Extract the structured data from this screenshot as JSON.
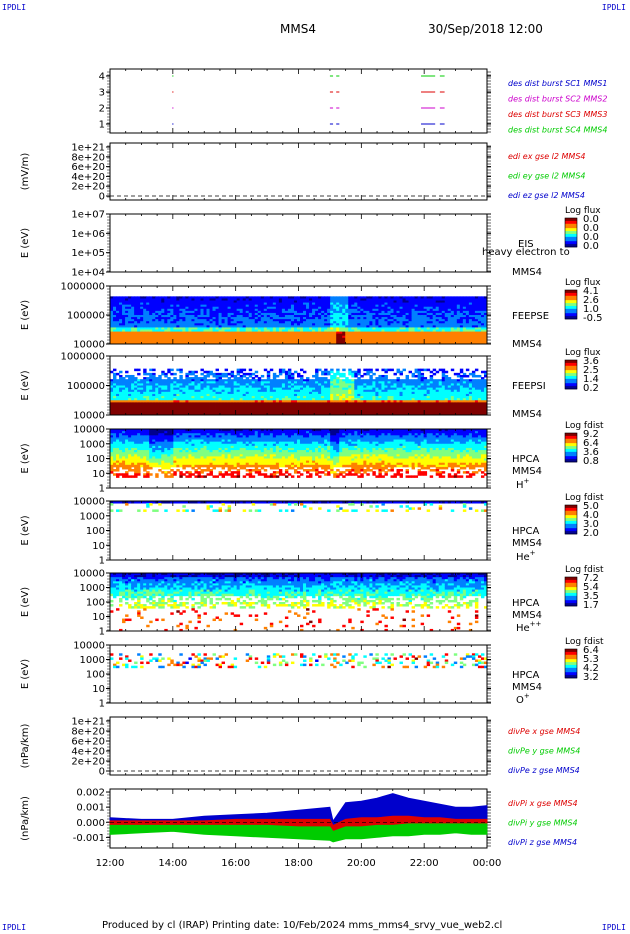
{
  "corner_labels": {
    "top_left": "IPDLI",
    "top_right": "IPDLI",
    "bottom_left": "IPDLI",
    "bottom_right": "IPDLI"
  },
  "header": {
    "spacecraft": "MMS4",
    "datetime": "30/Sep/2018 12:00"
  },
  "footer": "Produced by cl (IRAP)   Printing date: 10/Feb/2024   mms_mms4_srvy_vue_web2.cl",
  "colors": {
    "blue": "#0000cc",
    "magenta": "#cc00cc",
    "red": "#dd0000",
    "green": "#00cc00",
    "colormap": [
      "#00008f",
      "#0000ff",
      "#0080ff",
      "#00ffff",
      "#80ff80",
      "#ffff00",
      "#ff8000",
      "#ff0000",
      "#800000"
    ]
  },
  "chart_data": [
    {
      "id": "burst",
      "type": "line",
      "ylabel": "",
      "y_ticks": [
        "4",
        "3",
        "2",
        "1"
      ],
      "legend": [
        {
          "label": "des dist burst SC1 MMS1",
          "color": "#0000cc"
        },
        {
          "label": "des dist burst SC2 MMS2",
          "color": "#cc00cc"
        },
        {
          "label": "des dist burst SC3 MMS3",
          "color": "#dd0000"
        },
        {
          "label": "des dist burst SC4 MMS4",
          "color": "#00cc00"
        }
      ],
      "segments": [
        {
          "level": 4,
          "color": "#00cc00",
          "x_hours": [
            [
              13.98,
              14.02
            ],
            [
              19.0,
              19.1
            ],
            [
              19.2,
              19.3
            ],
            [
              21.9,
              22.35
            ],
            [
              22.5,
              22.65
            ]
          ]
        },
        {
          "level": 3,
          "color": "#dd0000",
          "x_hours": [
            [
              13.98,
              14.02
            ],
            [
              19.0,
              19.1
            ],
            [
              19.2,
              19.3
            ],
            [
              21.9,
              22.35
            ],
            [
              22.5,
              22.65
            ]
          ]
        },
        {
          "level": 2,
          "color": "#cc00cc",
          "x_hours": [
            [
              13.98,
              14.02
            ],
            [
              19.0,
              19.1
            ],
            [
              19.2,
              19.3
            ],
            [
              21.9,
              22.35
            ],
            [
              22.5,
              22.65
            ]
          ]
        },
        {
          "level": 1,
          "color": "#0000cc",
          "x_hours": [
            [
              13.98,
              14.02
            ],
            [
              19.0,
              19.1
            ],
            [
              19.2,
              19.3
            ],
            [
              21.9,
              22.35
            ],
            [
              22.5,
              22.65
            ]
          ]
        }
      ]
    },
    {
      "id": "edi",
      "type": "line",
      "ylabel": "(mV/m)",
      "y_ticks": [
        "1e+21",
        "8e+20",
        "6e+20",
        "4e+20",
        "2e+20",
        "0"
      ],
      "legend": [
        {
          "label": "edi ex gse l2 MMS4",
          "color": "#dd0000"
        },
        {
          "label": "edi ey gse l2 MMS4",
          "color": "#00cc00"
        },
        {
          "label": "edi ez gse l2 MMS4",
          "color": "#0000cc"
        }
      ]
    },
    {
      "id": "eis",
      "type": "heatmap",
      "ylabel": "E (eV)",
      "y_ticks": [
        "1e+07",
        "1e+06",
        "1e+05",
        "1e+04"
      ],
      "side_labels": [
        "EIS",
        "MMS4"
      ],
      "overlay_text": "heavy electron to",
      "cbar_title": "Log flux",
      "cbar_ticks": [
        "0.0",
        "0.0",
        "0.0",
        "0.0"
      ]
    },
    {
      "id": "feepse",
      "type": "heatmap",
      "ylabel": "E (eV)",
      "y_ticks": [
        "1000000",
        "100000",
        "10000"
      ],
      "side_labels": [
        "FEEPSE",
        "MMS4"
      ],
      "cbar_title": "Log flux",
      "cbar_ticks": [
        "4.1",
        "2.6",
        "1.0",
        "-0.5"
      ]
    },
    {
      "id": "feepsi",
      "type": "heatmap",
      "ylabel": "E (eV)",
      "y_ticks": [
        "1000000",
        "100000",
        "10000"
      ],
      "side_labels": [
        "FEEPSI",
        "MMS4"
      ],
      "cbar_title": "Log flux",
      "cbar_ticks": [
        "3.6",
        "2.5",
        "1.4",
        "0.2"
      ]
    },
    {
      "id": "hpca_h",
      "type": "heatmap",
      "ylabel": "E (eV)",
      "y_ticks": [
        "10000",
        "1000",
        "100",
        "10",
        "1"
      ],
      "side_labels": [
        "HPCA",
        "MMS4"
      ],
      "species": "H",
      "species_sup": "+",
      "cbar_title": "Log fdist",
      "cbar_ticks": [
        "9.2",
        "6.4",
        "3.6",
        "0.8"
      ]
    },
    {
      "id": "hpca_he1",
      "type": "heatmap",
      "ylabel": "E (eV)",
      "y_ticks": [
        "10000",
        "1000",
        "100",
        "10",
        "1"
      ],
      "side_labels": [
        "HPCA",
        "MMS4"
      ],
      "species": "He",
      "species_sup": "+",
      "cbar_title": "Log fdist",
      "cbar_ticks": [
        "5.0",
        "4.0",
        "3.0",
        "2.0"
      ]
    },
    {
      "id": "hpca_he2",
      "type": "heatmap",
      "ylabel": "E (eV)",
      "y_ticks": [
        "10000",
        "1000",
        "100",
        "10",
        "1"
      ],
      "side_labels": [
        "HPCA",
        "MMS4"
      ],
      "species": "He",
      "species_sup": "++",
      "cbar_title": "Log fdist",
      "cbar_ticks": [
        "7.2",
        "5.4",
        "3.5",
        "1.7"
      ]
    },
    {
      "id": "hpca_o",
      "type": "heatmap",
      "ylabel": "E (eV)",
      "y_ticks": [
        "10000",
        "1000",
        "100",
        "10",
        "1"
      ],
      "side_labels": [
        "HPCA",
        "MMS4"
      ],
      "species": "O",
      "species_sup": "+",
      "cbar_title": "Log fdist",
      "cbar_ticks": [
        "6.4",
        "5.3",
        "4.2",
        "3.2"
      ]
    },
    {
      "id": "divpe",
      "type": "line",
      "ylabel": "(nPa/km)",
      "y_ticks": [
        "1e+21",
        "8e+20",
        "6e+20",
        "4e+20",
        "2e+20",
        "0"
      ],
      "legend": [
        {
          "label": "divPe x gse MMS4",
          "color": "#dd0000"
        },
        {
          "label": "divPe y gse MMS4",
          "color": "#00cc00"
        },
        {
          "label": "divPe z gse MMS4",
          "color": "#0000cc"
        }
      ]
    },
    {
      "id": "divpi",
      "type": "line",
      "ylabel": "(nPa/km)",
      "y_ticks": [
        "0.002",
        "0.001",
        "0.000",
        "-0.001"
      ],
      "ylim": [
        -0.0017,
        0.0022
      ],
      "legend": [
        {
          "label": "divPi x gse MMS4",
          "color": "#dd0000"
        },
        {
          "label": "divPi y gse MMS4",
          "color": "#00cc00"
        },
        {
          "label": "divPi z gse MMS4",
          "color": "#0000cc"
        }
      ],
      "series": [
        {
          "name": "divPi z gse MMS4",
          "color": "#0000cc",
          "x_hours": [
            12,
            13,
            14,
            15,
            16,
            17,
            18,
            19,
            19.1,
            19.5,
            20,
            20.5,
            21,
            21.5,
            22,
            22.5,
            23,
            23.5,
            24
          ],
          "upper": [
            0.0003,
            0.0002,
            0.0002,
            0.0004,
            0.0005,
            0.0006,
            0.0008,
            0.001,
            0.0001,
            0.0013,
            0.0014,
            0.0016,
            0.0019,
            0.0016,
            0.0014,
            0.0012,
            0.001,
            0.001,
            0.0011
          ],
          "lower": [
            0.0001,
            0.0001,
            0.0001,
            0.0001,
            0.0002,
            0.0002,
            0.0002,
            0.0002,
            -0.0002,
            0.0002,
            0.0003,
            0.0003,
            0.0004,
            0.0004,
            0.0003,
            0.0003,
            0.0002,
            0.0002,
            0.0002
          ]
        },
        {
          "name": "divPi x gse MMS4",
          "color": "#dd0000",
          "x_hours": [
            12,
            13,
            14,
            15,
            16,
            17,
            18,
            19,
            19.1,
            19.5,
            20,
            20.5,
            21,
            21.5,
            22,
            22.5,
            23,
            23.5,
            24
          ],
          "upper": [
            0.0001,
            0.0001,
            0.0001,
            0.0001,
            0.0002,
            0.0002,
            0.0002,
            0.0002,
            -0.0002,
            0.0002,
            0.0003,
            0.0003,
            0.0004,
            0.0004,
            0.0003,
            0.0003,
            0.0002,
            0.0002,
            0.0002
          ],
          "lower": [
            -0.0002,
            -0.0002,
            -0.0002,
            -0.0002,
            -0.0002,
            -0.0002,
            -0.0003,
            -0.0003,
            -0.0006,
            -0.0003,
            -0.0003,
            -0.0002,
            -0.0002,
            -0.0001,
            -0.0001,
            -0.0001,
            -0.0001,
            -0.0001,
            -0.0001
          ]
        },
        {
          "name": "divPi y gse MMS4",
          "color": "#00cc00",
          "x_hours": [
            12,
            13,
            14,
            15,
            16,
            17,
            18,
            19,
            19.1,
            19.5,
            20,
            20.5,
            21,
            21.5,
            22,
            22.5,
            23,
            23.5,
            24
          ],
          "upper": [
            -0.0002,
            -0.0002,
            -0.0002,
            -0.0002,
            -0.0002,
            -0.0002,
            -0.0003,
            -0.0003,
            -0.0006,
            -0.0003,
            -0.0003,
            -0.0002,
            -0.0002,
            -0.0001,
            -0.0001,
            -0.0001,
            -0.0001,
            -0.0001,
            -0.0001
          ],
          "lower": [
            -0.0008,
            -0.0007,
            -0.0006,
            -0.0008,
            -0.0009,
            -0.001,
            -0.0011,
            -0.0012,
            -0.0013,
            -0.0011,
            -0.0011,
            -0.001,
            -0.0009,
            -0.0009,
            -0.0008,
            -0.0008,
            -0.0007,
            -0.0008,
            -0.0008
          ]
        }
      ]
    }
  ],
  "x_axis": {
    "range_hours": [
      12,
      24
    ],
    "tick_labels": [
      "12:00",
      "14:00",
      "16:00",
      "18:00",
      "20:00",
      "22:00",
      "00:00"
    ]
  }
}
